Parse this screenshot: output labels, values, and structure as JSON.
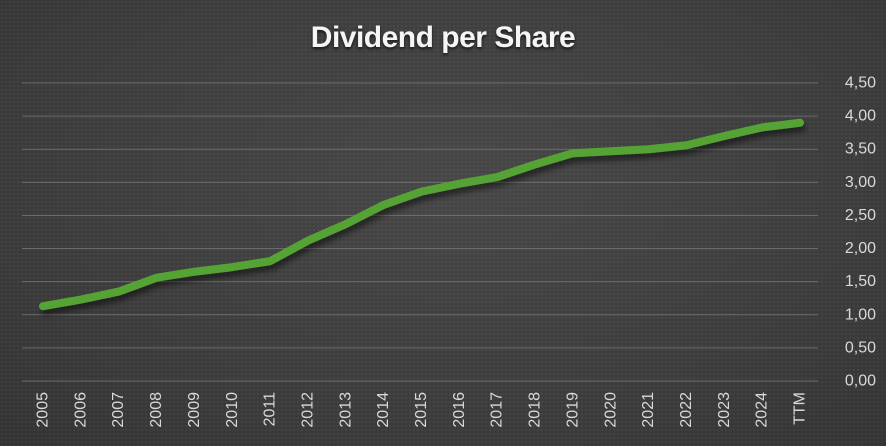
{
  "title": "Dividend per Share",
  "chart_data": {
    "type": "line",
    "title": "Dividend per Share",
    "categories": [
      "2005",
      "2006",
      "2007",
      "2008",
      "2009",
      "2010",
      "2011",
      "2012",
      "2013",
      "2014",
      "2015",
      "2016",
      "2017",
      "2018",
      "2019",
      "2020",
      "2021",
      "2022",
      "2023",
      "2024",
      "TTM"
    ],
    "series": [
      {
        "name": "Dividend per Share",
        "color": "#55a334",
        "values": [
          1.13,
          1.23,
          1.35,
          1.56,
          1.65,
          1.72,
          1.81,
          2.12,
          2.37,
          2.66,
          2.86,
          2.98,
          3.08,
          3.27,
          3.44,
          3.47,
          3.5,
          3.56,
          3.7,
          3.83,
          3.9
        ]
      }
    ],
    "ylim": [
      0,
      4.5
    ],
    "ytick_step": 0.5,
    "ytick_labels": [
      "0,00",
      "0,50",
      "1,00",
      "1,50",
      "2,00",
      "2,50",
      "3,00",
      "3,50",
      "4,00",
      "4,50"
    ],
    "xlabel": "",
    "ylabel": "",
    "legend_position": "none",
    "grid": true,
    "y_axis_side": "right",
    "x_tick_rotation": -90,
    "colors": {
      "line": "#55a334",
      "gridline": "#7a7a7a",
      "tick_label": "#d9d9d9",
      "title": "#f5f5f5",
      "background_center": "#474747",
      "background_edge": "#1c1c1c"
    }
  }
}
